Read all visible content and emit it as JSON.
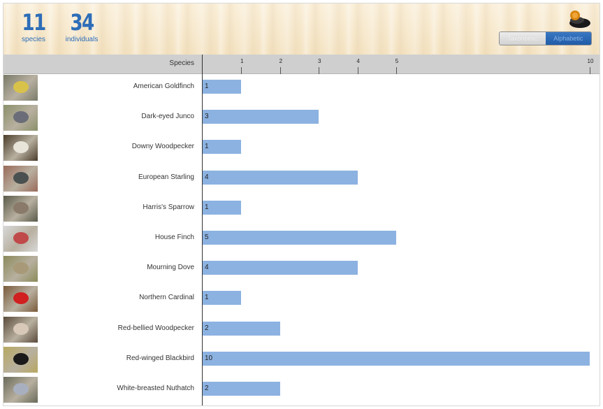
{
  "header": {
    "species_count": "11",
    "species_label": "species",
    "individuals_count": "34",
    "individuals_label": "individuals",
    "logo_icon": "bird-logo-icon",
    "toggle": {
      "taxonomic": "Taxonomic",
      "alphabetic": "Alphabetic",
      "selected": "Alphabetic"
    }
  },
  "table": {
    "species_header": "Species"
  },
  "colors": {
    "bar": "#8cb2e1",
    "accent": "#2d6db8",
    "toggle_active": "#2a6bbd"
  },
  "chart_data": {
    "type": "bar",
    "orientation": "horizontal",
    "xlabel": "",
    "ylabel": "Species",
    "ticks": [
      "1",
      "2",
      "3",
      "4",
      "5",
      "10"
    ],
    "xlim": [
      0,
      10
    ],
    "categories": [
      "American Goldfinch",
      "Dark-eyed Junco",
      "Downy Woodpecker",
      "European Starling",
      "Harris's Sparrow",
      "House Finch",
      "Mourning Dove",
      "Northern Cardinal",
      "Red-bellied Woodpecker",
      "Red-winged Blackbird",
      "White-breasted Nuthatch"
    ],
    "values": [
      1,
      3,
      1,
      4,
      1,
      5,
      4,
      1,
      2,
      10,
      2
    ],
    "thumb_colors": [
      [
        "#7a7a6a",
        "#d9c24a"
      ],
      [
        "#8a8f6a",
        "#6b6e78"
      ],
      [
        "#4a3c2a",
        "#e8e4da"
      ],
      [
        "#9a6a5a",
        "#4a5050"
      ],
      [
        "#5a5a4a",
        "#8a7a6a"
      ],
      [
        "#d8d8d8",
        "#c04a4a"
      ],
      [
        "#8a8a5a",
        "#a89a78"
      ],
      [
        "#7a5a3a",
        "#d02020"
      ],
      [
        "#5a4a3a",
        "#d8c8b8"
      ],
      [
        "#b8a860",
        "#1a1a1a"
      ],
      [
        "#6a6a5a",
        "#a8b0c0"
      ]
    ]
  }
}
